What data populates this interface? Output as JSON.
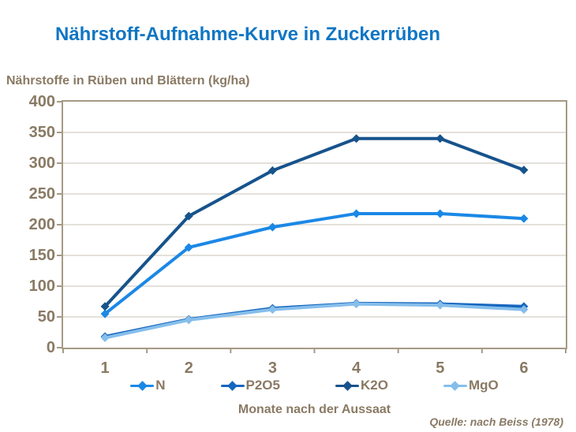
{
  "page": {
    "title": "Nährstoff-Aufnahme-Kurve in Zuckerrüben",
    "y_axis_title": "Nährstoffe in Rüben und Blättern (kg/ha)",
    "source": "Quelle: nach Beiss (1978)"
  },
  "colors": {
    "title": "#1076C4",
    "text": "#8A7A64",
    "axis": "#A69A85",
    "grid": "#DCD7CE",
    "background": "#FFFFFF"
  },
  "chart_data": {
    "type": "line",
    "title": "Nährstoff-Aufnahme-Kurve in Zuckerrüben",
    "xlabel": "Monate nach der Aussaat",
    "ylabel": "Nährstoffe in Rüben und Blättern (kg/ha)",
    "categories": [
      "1",
      "2",
      "3",
      "4",
      "5",
      "6"
    ],
    "ylim": [
      0,
      400
    ],
    "y_step": 50,
    "grid": "horizontal",
    "legend_position": "bottom",
    "marker": "diamond",
    "series": [
      {
        "name": "N",
        "color": "#1B88E6",
        "values": [
          55,
          163,
          196,
          218,
          218,
          210
        ]
      },
      {
        "name": "P2O5",
        "color": "#1666BE",
        "values": [
          18,
          46,
          64,
          72,
          71,
          67
        ]
      },
      {
        "name": "K2O",
        "color": "#17538C",
        "values": [
          67,
          214,
          288,
          340,
          340,
          289
        ]
      },
      {
        "name": "MgO",
        "color": "#85BEEB",
        "values": [
          16,
          45,
          62,
          71,
          69,
          62
        ]
      }
    ]
  }
}
